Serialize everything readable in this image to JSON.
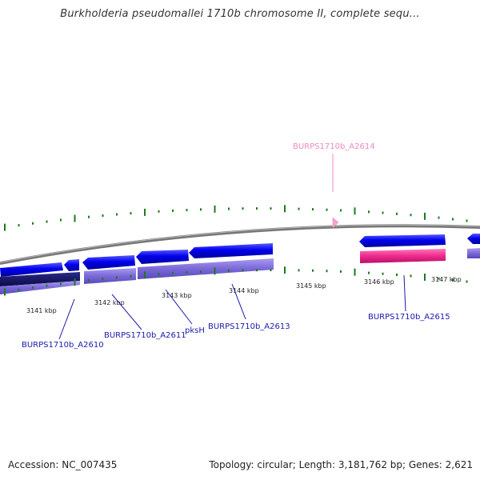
{
  "title": "Burkholderia pseudomallei 1710b chromosome II, complete sequ...",
  "footer": {
    "accession": "Accession: NC_007435",
    "info": "Topology: circular; Length: 3,181,762 bp; Genes: 2,621"
  },
  "axis_labels": [
    "3141 kbp",
    "3142 kbp",
    "3143 kbp",
    "3144 kbp",
    "3145 kbp",
    "3146 kbp",
    "3147 kbp"
  ],
  "gene_labels": [
    "BURPS1710b_A2610",
    "BURPS1710b_A2611",
    "pksH",
    "BURPS1710b_A2613",
    "BURPS1710b_A2614",
    "BURPS1710b_A2615"
  ],
  "colors": {
    "forward_gene": "#0a0aee",
    "cds": "#8070d8",
    "highlight": "#ee2a8c",
    "highlight_label": "#ee88c4",
    "backbone": "#888888",
    "ticks": "#1e7a1e",
    "label": "#1a1aaa"
  }
}
